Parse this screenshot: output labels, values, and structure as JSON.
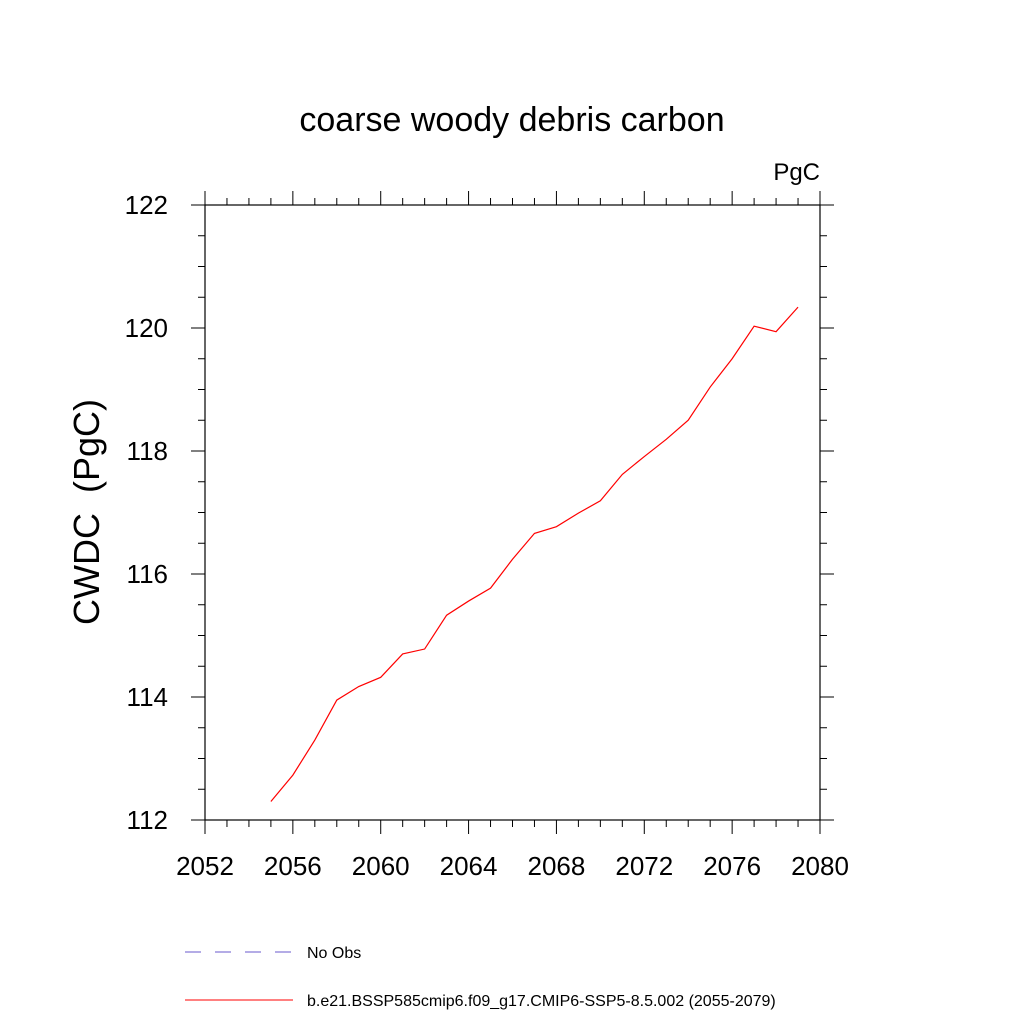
{
  "chart_data": {
    "type": "line",
    "title": "coarse woody debris carbon",
    "units_label": "PgC",
    "ylabel": "CWDC  (PgC)",
    "xlabel": "",
    "xlim": [
      2052,
      2080
    ],
    "ylim": [
      112,
      122
    ],
    "x_ticks": [
      2052,
      2056,
      2060,
      2064,
      2068,
      2072,
      2076,
      2080
    ],
    "y_ticks": [
      112,
      114,
      116,
      118,
      120,
      122
    ],
    "x_tick_labels": [
      "2052",
      "2056",
      "2060",
      "2064",
      "2068",
      "2072",
      "2076",
      "2080"
    ],
    "y_tick_labels": [
      "112",
      "114",
      "116",
      "118",
      "120",
      "122"
    ],
    "grid": false,
    "series": [
      {
        "name": "b.e21.BSSP585cmip6.f09_g17.CMIP6-SSP5-8.5.002 (2055-2079)",
        "color": "#ff0000",
        "x": [
          2055,
          2056,
          2057,
          2058,
          2059,
          2060,
          2061,
          2062,
          2063,
          2064,
          2065,
          2066,
          2067,
          2068,
          2069,
          2070,
          2071,
          2072,
          2073,
          2074,
          2075,
          2076,
          2077,
          2078,
          2079
        ],
        "values": [
          112.3,
          112.73,
          113.3,
          113.95,
          114.17,
          114.32,
          114.7,
          114.78,
          115.33,
          115.56,
          115.77,
          116.24,
          116.66,
          116.77,
          116.99,
          117.19,
          117.62,
          117.91,
          118.19,
          118.5,
          119.04,
          119.5,
          120.03,
          119.94,
          120.34
        ]
      }
    ],
    "legend": {
      "placement": "bottom",
      "entries": [
        {
          "label": "No Obs",
          "color": "#6a5acd",
          "style": "dashed"
        },
        {
          "label": "b.e21.BSSP585cmip6.f09_g17.CMIP6-SSP5-8.5.002 (2055-2079)",
          "color": "#ff0000",
          "style": "solid"
        }
      ]
    }
  }
}
